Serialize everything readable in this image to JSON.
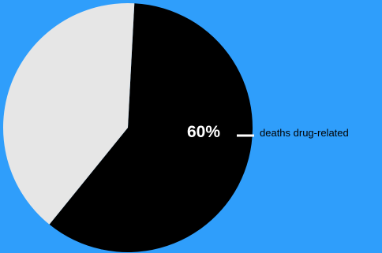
{
  "background_color": "#2f9efb",
  "chart_data": {
    "type": "pie",
    "slices": [
      {
        "label": "deaths drug-related",
        "value": 60,
        "color": "#000000"
      },
      {
        "label": "",
        "value": 40,
        "color": "#e6e6e6"
      }
    ],
    "percent_label": "60%",
    "callout_label": "deaths drug-related",
    "callout_line_color": "#ffffff"
  }
}
